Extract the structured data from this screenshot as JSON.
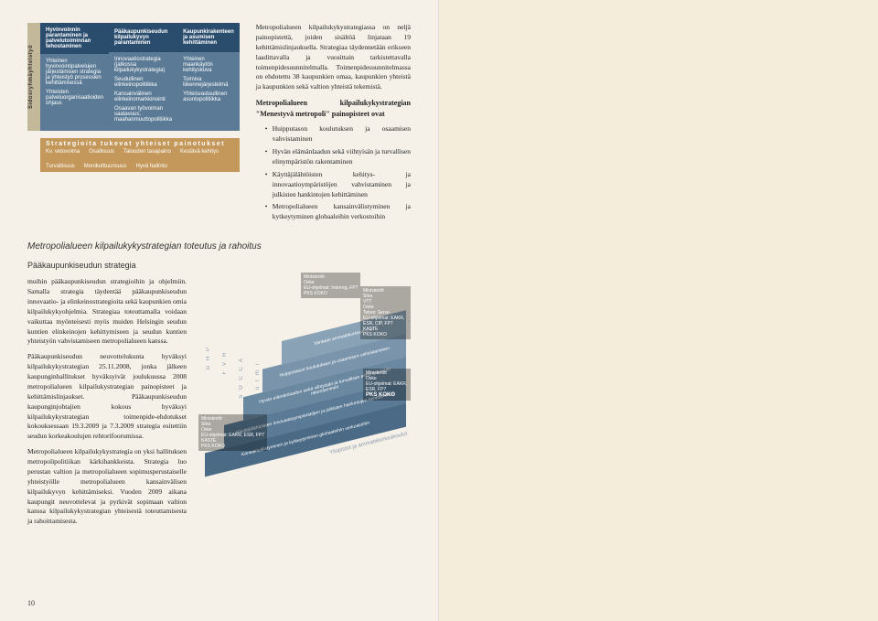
{
  "table": {
    "sidebar": "Sidosryhmäyhteistyö",
    "cols": [
      {
        "header": "Hyvinvoinnin parantaminen ja palvelutoiminnan tehostaminen",
        "body": [
          "Yhteinen hyvinvointipalvelujen järjestämisen strategia ja yhteistyö prosessien kehittämisessä",
          "Yhteisten palveluorganisaatioiden ohjaus"
        ]
      },
      {
        "header": "Pääkaupunkiseudun kilpailukyvyn parantaminen",
        "body": [
          "Innovaatiostrategia (jatkossa kilpailukykystrategia)",
          "Seudullinen elinkeinopolitiikka",
          "Kansainvälinen elinkeinomarkkinointi",
          "Osaavan työvoiman saatavuus, maahanmuuttopolitiikka"
        ]
      },
      {
        "header": "Kaupunkirakenteen ja asumisen kehittäminen",
        "body": [
          "Yhteinen maankäytön kehityskuva",
          "Toimiva liikennejärjestelmä",
          "Yhteisvastuullinen asuntopolitiikka"
        ]
      }
    ],
    "footerTitle": "Strategioita tukevat yhteiset painotukset",
    "footerItems": [
      "Kv. vetovoima",
      "Osallisuus",
      "Talouden tasapaino",
      "Kestävä kehitys",
      "Turvallisuus",
      "Monikulttuurisuus",
      "Hyvä hallinto"
    ]
  },
  "intro": {
    "p1": "Metropolialueen kilpailukykystrategiassa on neljä painopistettä, joiden sisältöä linjataan 19 kehittämislinjauksella. Strategiaa täydennetään erikseen laadittavalla ja vuosittain tarkistettavalla toimenpidesuunnitelmalla. Toimenpidesuunnitelmassa on ehdotettu 38 kaupunkien omaa, kaupunkien yhteistä ja kaupunkien sekä valtion yhteistä tekemistä.",
    "p2": "Metropolialueen kilpailukykystrategian \"Menestyvä metropoli\" painopisteet ovat",
    "bullets": [
      "Huipputason koulutuksen ja osaamisen vahvistaminen",
      "Hyvän elämänlaadun sekä viihtyisän ja turvallisen elinympäristön rakentaminen",
      "Käyttäjälähtöisten kehitys- ja innovaatioympäristöjen vahvistaminen ja julkisten hankintojen kehittäminen",
      "Metropolialueen kansainvälistyminen ja kytkeytyminen globaaleihin verkostoihin"
    ]
  },
  "sectionTitle": "Metropolialueen kilpailukykystrategian toteutus ja rahoitus",
  "subTitle": "Pääkaupunkiseudun strategia",
  "lower": {
    "p1": "muihin pääkaupunkiseudun strategioihin ja ohjelmiin. Samalla strategia täydentää pääkaupunkiseudun innovaatio- ja elinkeinostrategioita sekä kaupunkien omia kilpailukykyohjelmia. Strategiaa toteuttamalla voidaan vaikuttaa myönteisesti myös muiden Helsingin seudun kuntien elinkeinojen kehittymiseen ja seudun kuntien yhteistyön vahvistamiseen metropolialueen kanssa.",
    "p2": "Pääkaupunkiseudun neuvottelukunta hyväksyi kilpailukykystrategian 25.11.2008, jonka jälkeen kaupunginhallitukset hyväksyivät joulukuussa 2008 metropolialueen kilpailukystrategian painopisteet ja kehittämislinjaukset. Pääkaupunkiseudun kaupunginjohtajien kokous hyväksyi kilpailukykystrategian toimenpide-ehdotukset kokouksessaan 19.3.2009 ja 7.3.2009 strategia esitettiin seudun korkeakoulujen rehtorifoorumissa.",
    "p3": "Metropolialueen kilpailukykystrategia on yksi hallituksen metropolipolitiikan kärkihankkeista. Strategia luo perustan valtion ja metropolialueen sopimusperustaiselle yhteistyölle metropolialueen kansainvälisen kilpailukyvyn kehittämiseksi. Vuoden 2009 aikana kaupungit neuvottelevat ja pyrkivät sopimaan valtion kanssa kilpailukykystrategian yhteisestä toteuttamisesta ja rahoittamisesta."
  },
  "pyramid": {
    "layers": [
      {
        "text": "Kansainvälistyminen ja kytkeytyminen globaaleihin verkostoihin",
        "color": "#4a6a85"
      },
      {
        "text": "Käyttäjälähtöisten innovaatioympäristöjen ja julkisten hankintojen kehittäminen",
        "color": "#5a7a95"
      },
      {
        "text": "Hyvän elämänlaadun sekä viihtyisän ja turvallisen elinympäristön rakentaminen",
        "color": "#6a88a0"
      },
      {
        "text": "Huipputason koulutuksen ja osaamisen vahvistaminen",
        "color": "#7a95ab"
      },
      {
        "text": "Vantaan ammattikorkeakoulut",
        "color": "#8aa2b5"
      }
    ],
    "sideLabels": [
      "G H P",
      "F V H",
      "S O C C A",
      "u l m i",
      "A L V t a r",
      "Yliopistot ja ammattikorkeakoulut"
    ],
    "badges": [
      {
        "lines": [
          "Ministeriöt",
          "Oske",
          "EU-ohjelmat: Interreg, FP7",
          "PKS KOKO"
        ]
      },
      {
        "lines": [
          "Ministeriöt",
          "Sitra",
          "VTT",
          "Oske",
          "Tekes: Serve",
          "EU-ohjelmat: EAKR, ESR, CIP, FP7",
          "KASTE",
          "PKS KOKO"
        ]
      },
      {
        "lines": [
          "Ministeriöt",
          "Oske",
          "EU-ohjelmat: EAKR, ESR, FP7"
        ],
        "strong": "PKS KOKO"
      },
      {
        "lines": [
          "Ministeriöt",
          "Sitra",
          "Oske",
          "EU-ohjelmat: EAKR, ESR, FP7",
          "KASTE",
          "PKS KOKO"
        ]
      }
    ]
  },
  "pageNum": "10"
}
